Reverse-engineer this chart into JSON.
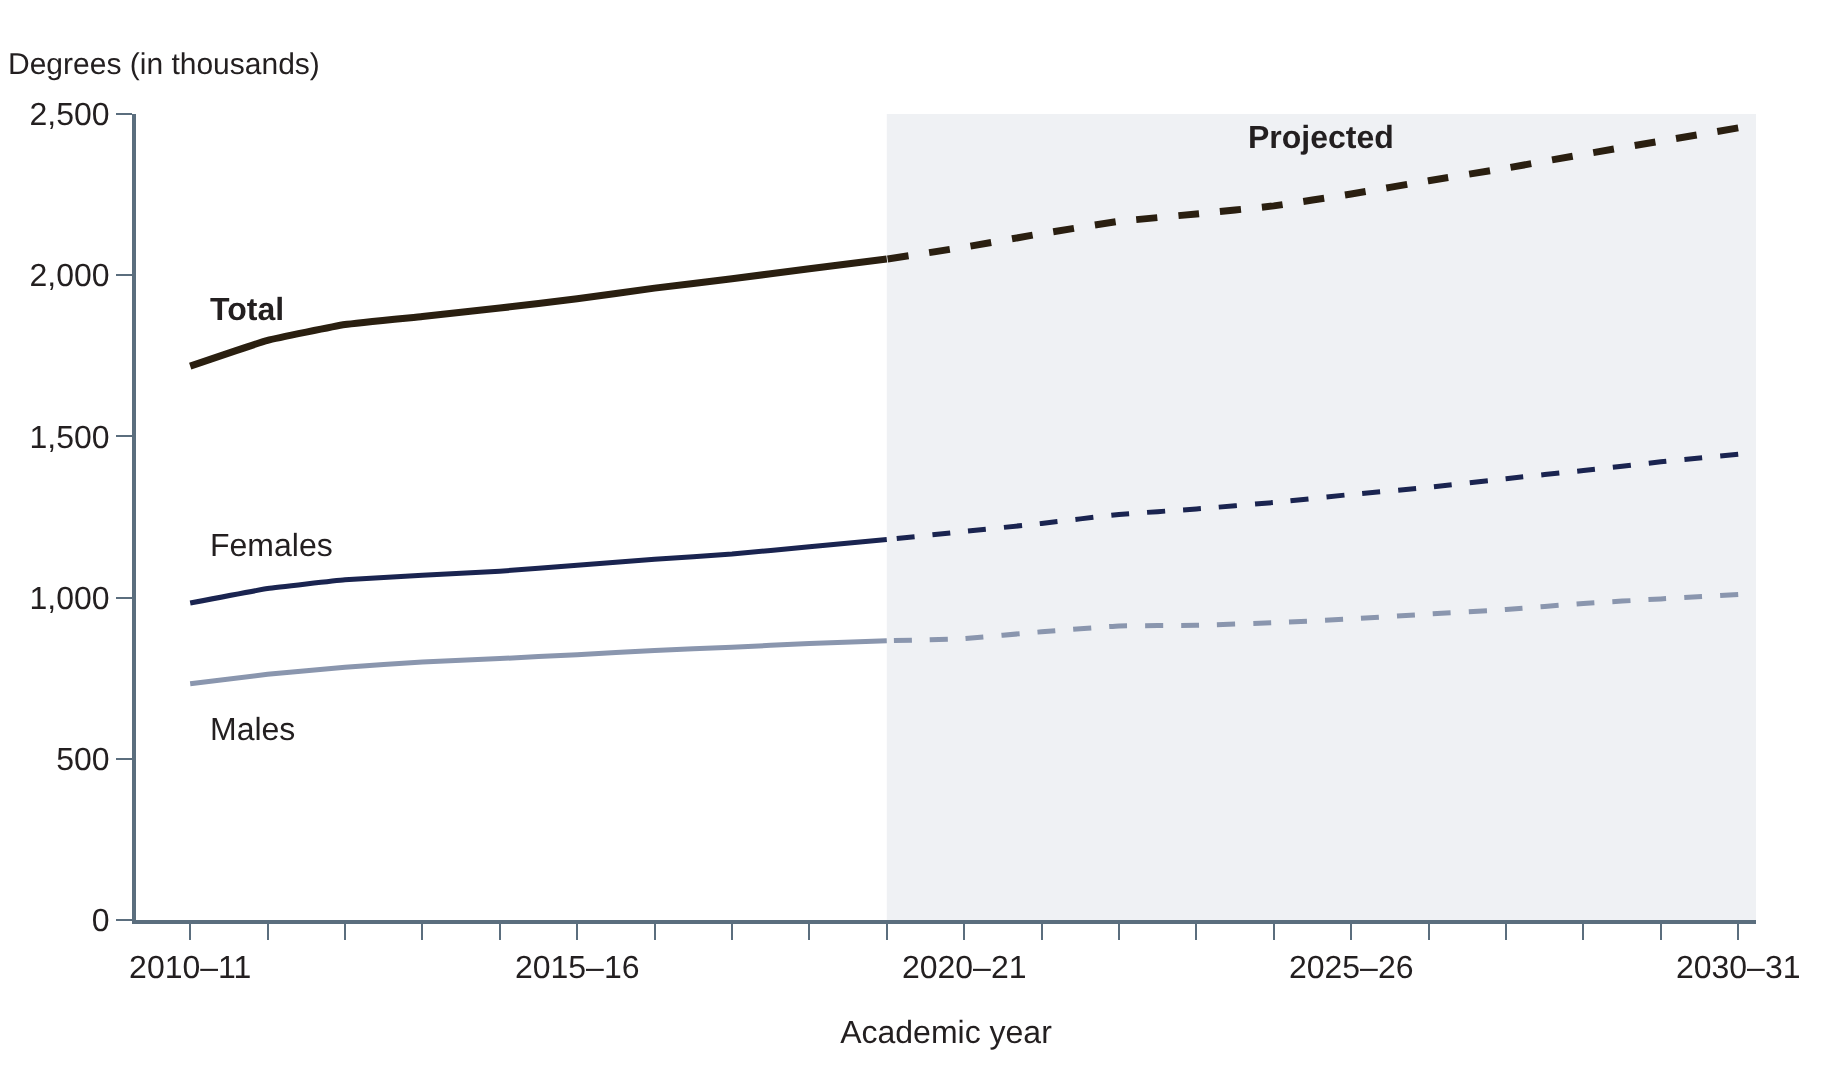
{
  "chart_data": {
    "type": "line",
    "xlabel": "Academic year",
    "ylabel": "Degrees (in thousands)",
    "categories": [
      "2010–11",
      null,
      null,
      null,
      null,
      "2015–16",
      null,
      null,
      null,
      null,
      "2020–21",
      null,
      null,
      null,
      null,
      "2025–26",
      null,
      null,
      null,
      null,
      "2030–31"
    ],
    "ylim": [
      0,
      2500
    ],
    "yticks": [
      0,
      {
        "value": 500,
        "label": "500"
      },
      {
        "value": 1000,
        "label": "1,000"
      },
      {
        "value": 1500,
        "label": "1,500"
      },
      {
        "value": 2000,
        "label": "2,000"
      },
      {
        "value": 2500,
        "label": "2,500"
      }
    ],
    "grid": false,
    "legend": false,
    "marker": "none",
    "series": [
      {
        "name": "Total",
        "color": "#2a1f10",
        "line_style": "solid",
        "values": [
          1718,
          1798,
          1847,
          1872,
          1898,
          1927,
          1960,
          1989,
          2020,
          2050,
          null,
          null,
          null,
          null,
          null,
          null,
          null,
          null,
          null,
          null,
          null
        ]
      },
      {
        "name": "Females",
        "color": "#1a2450",
        "line_style": "solid",
        "values": [
          983,
          1028,
          1055,
          1069,
          1082,
          1100,
          1119,
          1135,
          1158,
          1180,
          null,
          null,
          null,
          null,
          null,
          null,
          null,
          null,
          null,
          null,
          null
        ]
      },
      {
        "name": "Males",
        "color": "#8a96ae",
        "line_style": "solid",
        "values": [
          733,
          762,
          784,
          800,
          811,
          823,
          836,
          846,
          858,
          866,
          null,
          null,
          null,
          null,
          null,
          null,
          null,
          null,
          null,
          null,
          null
        ]
      },
      {
        "color": "#2a1f10",
        "line_style": "dashed",
        "values": [
          null,
          null,
          null,
          null,
          null,
          null,
          null,
          null,
          null,
          2050,
          2087,
          2129,
          2167,
          2190,
          2215,
          2252,
          2293,
          2332,
          2375,
          2416,
          2457
        ]
      },
      {
        "color": "#1a2450",
        "line_style": "dashed",
        "values": [
          null,
          null,
          null,
          null,
          null,
          null,
          null,
          null,
          null,
          1180,
          1205,
          1230,
          1258,
          1275,
          1295,
          1320,
          1342,
          1369,
          1394,
          1421,
          1445
        ]
      },
      {
        "color": "#8a96ae",
        "line_style": "dashed",
        "values": [
          null,
          null,
          null,
          null,
          null,
          null,
          null,
          null,
          null,
          866,
          873,
          894,
          912,
          914,
          922,
          934,
          949,
          963,
          982,
          996,
          1010
        ]
      }
    ],
    "annotations": [
      "Projected"
    ]
  }
}
